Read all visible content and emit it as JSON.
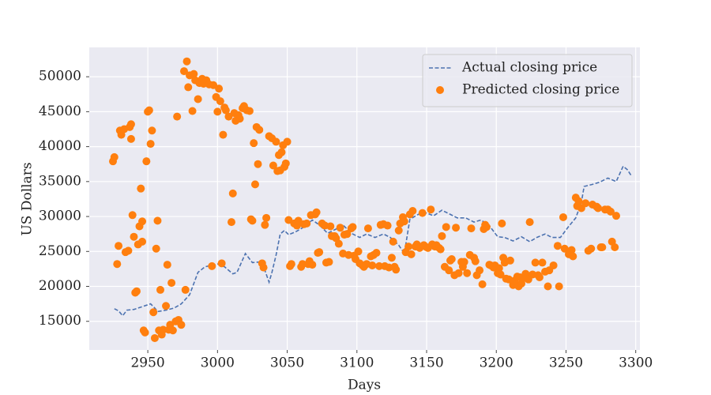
{
  "chart_data": {
    "type": "line",
    "x_label": "Days",
    "y_label": "US Dollars",
    "xlim": [
      2908,
      3303
    ],
    "ylim": [
      10900,
      54200
    ],
    "xticks": [
      2950,
      3000,
      3050,
      3100,
      3150,
      3200,
      3250,
      3300
    ],
    "yticks": [
      15000,
      20000,
      25000,
      30000,
      35000,
      40000,
      45000,
      50000
    ],
    "grid": true,
    "legend": "upper right",
    "series": [
      {
        "name": "Actual closing price",
        "kind": "line",
        "style": "dashed",
        "color": "#4c72b0",
        "x": [
          2926,
          2929,
          2932,
          2935,
          2940,
          2946,
          2952,
          2955,
          2957,
          2963,
          2969,
          2974,
          2980,
          2986,
          2991,
          3000,
          3005,
          3011,
          3014,
          3020,
          3025,
          3031,
          3034,
          3037,
          3039,
          3042,
          3045,
          3048,
          3051,
          3056,
          3062,
          3068,
          3073,
          3079,
          3085,
          3090,
          3096,
          3102,
          3107,
          3113,
          3119,
          3124,
          3130,
          3134,
          3138,
          3144,
          3150,
          3155,
          3161,
          3167,
          3172,
          3178,
          3184,
          3189,
          3195,
          3201,
          3206,
          3212,
          3218,
          3224,
          3229,
          3235,
          3240,
          3246,
          3252,
          3257,
          3261,
          3263,
          3269,
          3274,
          3280,
          3286,
          3291,
          3294,
          3297
        ],
        "values": [
          16800,
          16500,
          15800,
          16600,
          16700,
          17100,
          17500,
          16900,
          16400,
          16600,
          16900,
          17500,
          18800,
          22000,
          22800,
          23200,
          22800,
          21800,
          22000,
          24700,
          23400,
          23500,
          22300,
          20600,
          22000,
          24500,
          27500,
          28000,
          27400,
          27800,
          28500,
          29500,
          28800,
          27600,
          28200,
          28800,
          27600,
          27000,
          27500,
          27000,
          27500,
          27000,
          25900,
          24700,
          29600,
          30300,
          30500,
          30100,
          30900,
          30300,
          29800,
          29800,
          29200,
          29500,
          28700,
          27100,
          27000,
          26500,
          27100,
          26400,
          27000,
          27500,
          27000,
          27000,
          28600,
          29800,
          32000,
          34300,
          34600,
          34900,
          35500,
          35000,
          37200,
          36700,
          35800
        ]
      },
      {
        "name": "Predicted closing price",
        "kind": "scatter",
        "color": "#ff7f0e",
        "x": [
          2925,
          2926,
          2928,
          2929,
          2930,
          2931,
          2933,
          2934,
          2936,
          2937,
          2938,
          2938,
          2939,
          2940,
          2941,
          2942,
          2943,
          2944,
          2945,
          2946,
          2946,
          2947,
          2948,
          2949,
          2950,
          2951,
          2952,
          2953,
          2954,
          2955,
          2956,
          2957,
          2958,
          2959,
          2960,
          2961,
          2963,
          2964,
          2965,
          2966,
          2967,
          2968,
          2970,
          2971,
          2972,
          2974,
          2976,
          2977,
          2978,
          2979,
          2980,
          2982,
          2983,
          2984,
          2986,
          2987,
          2989,
          2990,
          2992,
          2994,
          2996,
          2997,
          2999,
          3000,
          3001,
          3002,
          3003,
          3004,
          3005,
          3006,
          3008,
          3010,
          3011,
          3012,
          3013,
          3015,
          3016,
          3018,
          3019,
          3021,
          3023,
          3024,
          3025,
          3026,
          3027,
          3028,
          3029,
          3030,
          3032,
          3033,
          3034,
          3035,
          3037,
          3039,
          3040,
          3042,
          3043,
          3044,
          3045,
          3046,
          3047,
          3048,
          3049,
          3050,
          3051,
          3052,
          3053,
          3055,
          3057,
          3058,
          3060,
          3061,
          3062,
          3064,
          3065,
          3066,
          3067,
          3068,
          3070,
          3071,
          3072,
          3073,
          3075,
          3077,
          3078,
          3080,
          3081,
          3082,
          3084,
          3085,
          3087,
          3088,
          3090,
          3091,
          3093,
          3094,
          3096,
          3097,
          3098,
          3099,
          3101,
          3102,
          3104,
          3105,
          3107,
          3108,
          3110,
          3111,
          3112,
          3114,
          3116,
          3117,
          3119,
          3120,
          3122,
          3123,
          3125,
          3126,
          3127,
          3128,
          3130,
          3131,
          3133,
          3134,
          3135,
          3137,
          3138,
          3139,
          3140,
          3142,
          3143,
          3145,
          3147,
          3148,
          3150,
          3151,
          3153,
          3154,
          3156,
          3157,
          3159,
          3160,
          3161,
          3163,
          3164,
          3166,
          3167,
          3168,
          3170,
          3171,
          3173,
          3175,
          3176,
          3177,
          3179,
          3181,
          3182,
          3184,
          3185,
          3186,
          3188,
          3190,
          3191,
          3192,
          3193,
          3195,
          3196,
          3198,
          3199,
          3201,
          3202,
          3203,
          3204,
          3205,
          3206,
          3207,
          3209,
          3210,
          3212,
          3213,
          3215,
          3216,
          3217,
          3218,
          3220,
          3221,
          3223,
          3224,
          3226,
          3228,
          3230,
          3231,
          3233,
          3235,
          3237,
          3238,
          3241,
          3244,
          3245,
          3248,
          3249,
          3252,
          3254,
          3255,
          3257,
          3258,
          3259,
          3261,
          3264,
          3266,
          3268,
          3269,
          3272,
          3273,
          3275,
          3276,
          3278,
          3280,
          3282,
          3283,
          3285,
          3286
        ],
        "values": [
          37900,
          38500,
          23200,
          25800,
          42300,
          41700,
          42500,
          24900,
          25100,
          42800,
          43200,
          41100,
          30200,
          27100,
          19100,
          19300,
          26000,
          28600,
          34000,
          29300,
          26400,
          13700,
          13400,
          37900,
          45000,
          45200,
          40400,
          42300,
          16300,
          12600,
          25400,
          29400,
          13700,
          19500,
          13100,
          13800,
          17200,
          23100,
          13800,
          14500,
          20500,
          13700,
          15000,
          44300,
          15200,
          14500,
          50800,
          19500,
          52200,
          48500,
          50200,
          45100,
          50400,
          49500,
          46800,
          49100,
          49700,
          49000,
          49500,
          48900,
          22900,
          48800,
          47100,
          45000,
          48300,
          46500,
          23300,
          41700,
          45600,
          45200,
          44300,
          29200,
          33300,
          44800,
          43700,
          44500,
          44000,
          45500,
          45800,
          45200,
          45100,
          29600,
          29400,
          40500,
          34600,
          42800,
          37500,
          42400,
          23300,
          22700,
          28800,
          29800,
          41500,
          41200,
          37300,
          40700,
          36500,
          38800,
          36600,
          39200,
          40200,
          37100,
          37600,
          40700,
          29500,
          22900,
          23200,
          29000,
          28700,
          29400,
          22800,
          23200,
          28900,
          29000,
          23200,
          23600,
          30200,
          23100,
          30300,
          30600,
          24800,
          24900,
          29000,
          28700,
          23400,
          23500,
          28600,
          27200,
          27200,
          26900,
          26100,
          28400,
          24700,
          27400,
          27500,
          24500,
          28300,
          28500,
          24400,
          23900,
          25000,
          23300,
          23000,
          22800,
          23200,
          28300,
          24300,
          23000,
          24500,
          24800,
          22900,
          28800,
          28900,
          22900,
          28700,
          22700,
          24100,
          26400,
          22800,
          22400,
          28000,
          29000,
          29900,
          29300,
          24900,
          25700,
          30300,
          24600,
          30800,
          25700,
          26000,
          25500,
          30500,
          25900,
          25600,
          25500,
          31000,
          26000,
          25700,
          25900,
          25500,
          25300,
          27200,
          22800,
          28500,
          22300,
          23700,
          23900,
          21600,
          28400,
          21900,
          23500,
          22800,
          23500,
          21900,
          24500,
          28300,
          24100,
          23600,
          21600,
          22300,
          20300,
          28200,
          28800,
          28500,
          23100,
          23000,
          22700,
          23000,
          21900,
          22600,
          21700,
          29000,
          24100,
          23400,
          21100,
          21000,
          23700,
          20200,
          20800,
          21400,
          20000,
          21300,
          20400,
          21200,
          21800,
          21000,
          29200,
          21700,
          23400,
          21600,
          21300,
          23400,
          22100,
          20000,
          22300,
          23000,
          25800,
          20000,
          29900,
          25400,
          24600,
          25200,
          24300,
          32700,
          31500,
          32200,
          31200,
          31900,
          25100,
          25400,
          31700,
          31400,
          31200,
          25600,
          25600,
          31000,
          31000,
          30700,
          26400,
          25600,
          30100
        ]
      }
    ]
  }
}
